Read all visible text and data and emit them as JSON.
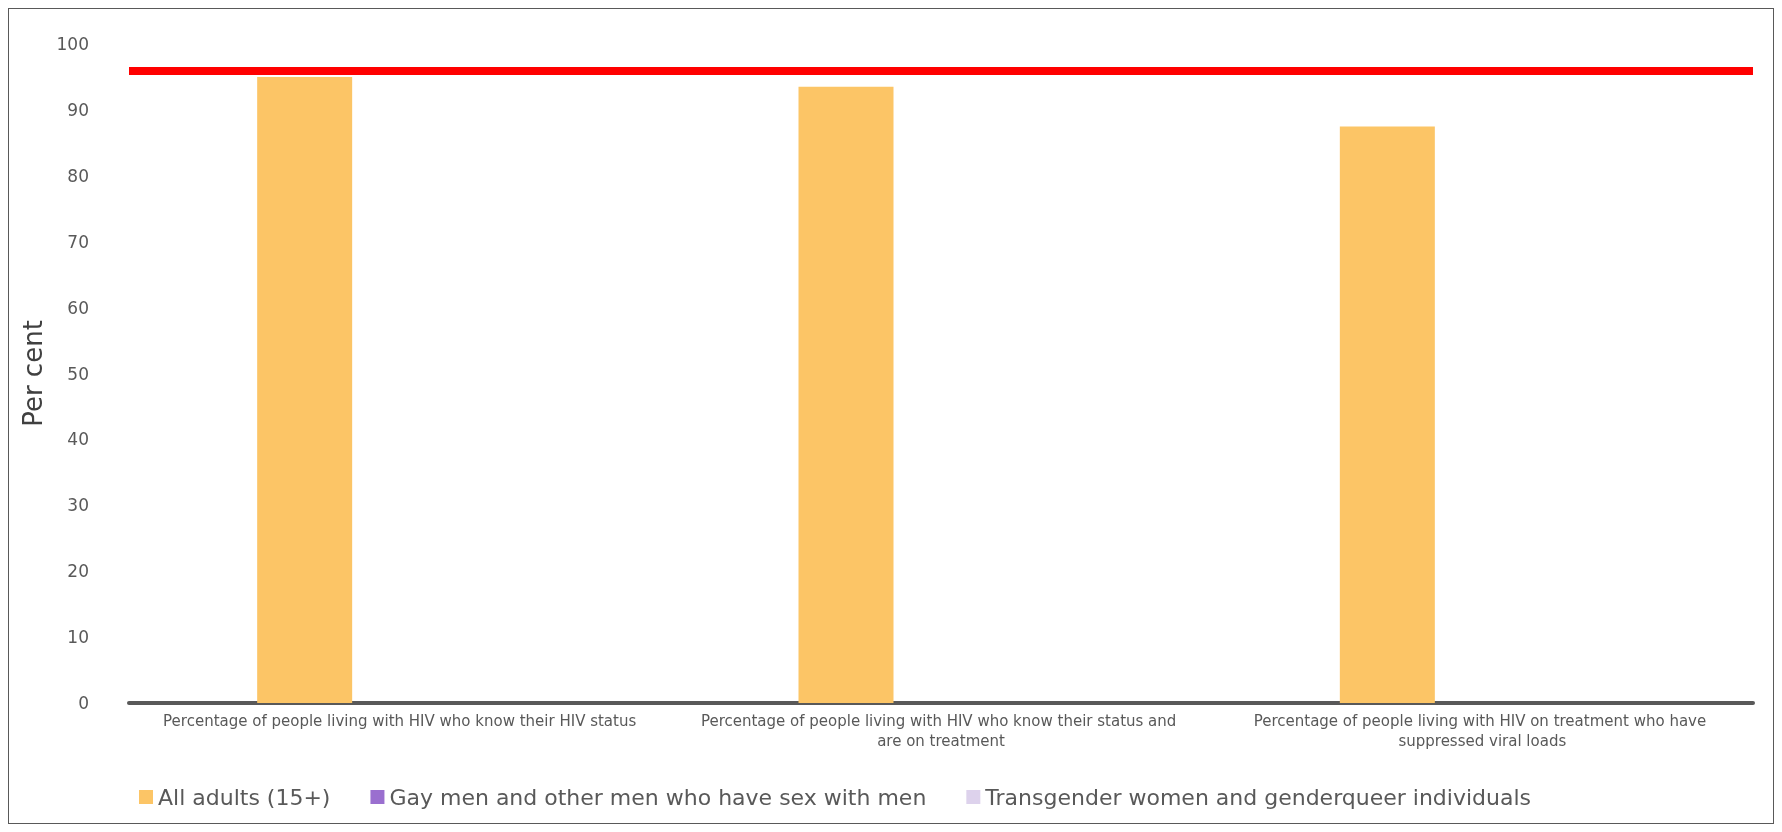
{
  "chart_data": {
    "type": "bar",
    "ylabel": "Per cent",
    "categories": [
      "Percentage of people living with HIV who know their HIV status",
      "Percentage of people living with HIV who know their status and are on treatment",
      "Percentage of people living with HIV on treatment who have suppressed viral loads"
    ],
    "series": [
      {
        "name": "All adults (15+)",
        "color": "#fcc566",
        "values": [
          95,
          93.5,
          87.5
        ]
      },
      {
        "name": "Gay men and other men who have sex with men",
        "color": "#9a6fcf",
        "values": [
          null,
          null,
          null
        ]
      },
      {
        "name": "Transgender women and genderqueer individuals",
        "color": "#ddd2ec",
        "values": [
          null,
          null,
          null
        ]
      }
    ],
    "ylim": [
      0,
      100
    ],
    "yticks": [
      0,
      10,
      20,
      30,
      40,
      50,
      60,
      70,
      80,
      90,
      100
    ],
    "ref_lines": [
      {
        "axis": "y",
        "value": 96,
        "color": "#ff0000"
      }
    ],
    "grid": false,
    "legend": "bottom"
  }
}
